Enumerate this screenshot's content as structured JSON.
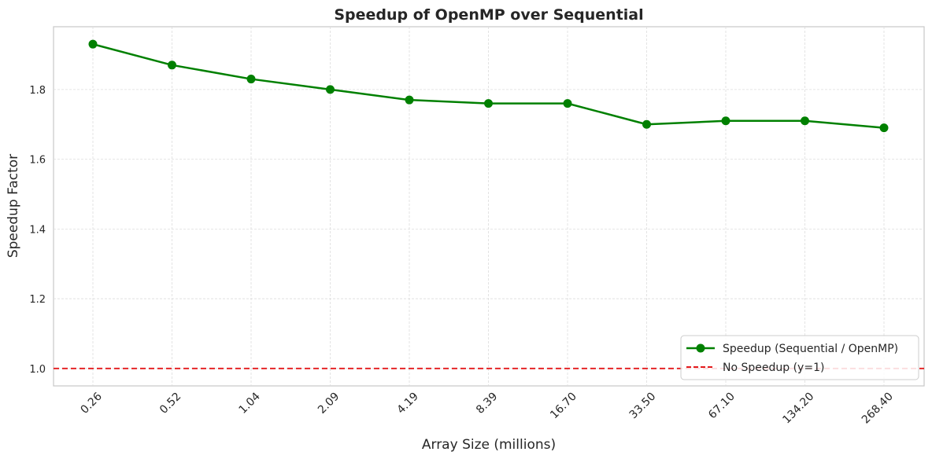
{
  "chart_data": {
    "type": "line",
    "title": "Speedup of OpenMP over Sequential",
    "xlabel": "Array Size (millions)",
    "ylabel": "Speedup Factor",
    "categories": [
      "0.26",
      "0.52",
      "1.04",
      "2.09",
      "4.19",
      "8.39",
      "16.70",
      "33.50",
      "67.10",
      "134.20",
      "268.40"
    ],
    "series": [
      {
        "name": "Speedup (Sequential / OpenMP)",
        "color": "#008000",
        "marker": "circle",
        "values": [
          1.93,
          1.87,
          1.83,
          1.8,
          1.77,
          1.76,
          1.76,
          1.7,
          1.71,
          1.71,
          1.69
        ]
      }
    ],
    "reference_line": {
      "name": "No Speedup (y=1)",
      "y": 1.0,
      "color": "#e31a1c",
      "style": "dashed"
    },
    "ylim": [
      0.95,
      1.98
    ],
    "yticks": [
      "1.0",
      "1.2",
      "1.4",
      "1.6",
      "1.8"
    ],
    "grid": true,
    "legend_position": "bottom-right"
  }
}
